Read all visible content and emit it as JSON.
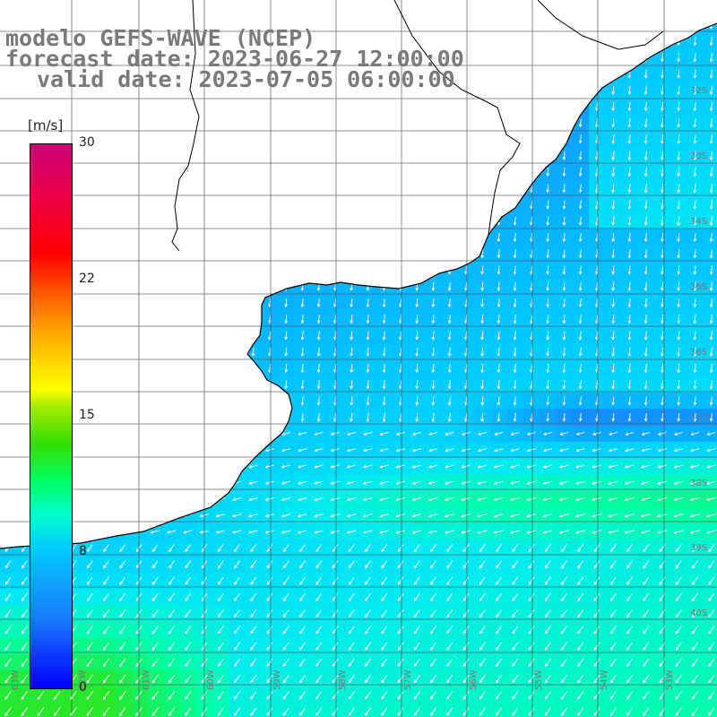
{
  "title": {
    "line1": "modelo GEFS-WAVE (NCEP)",
    "line2": "forecast date: 2023-06-27 12:00:00",
    "line3": "valid date: 2023-07-05 06:00:00"
  },
  "colorbar": {
    "unit": "[m/s]",
    "ticks": [
      "30",
      "22",
      "15",
      "8",
      "0"
    ],
    "tick_values": [
      30,
      22,
      15,
      8,
      0
    ],
    "colors": [
      "#0000ff",
      "#00ccff",
      "#00ff66",
      "#ffff00",
      "#ff0000",
      "#cc0077"
    ]
  },
  "map": {
    "lat_labels": [
      "32S",
      "33S",
      "34S",
      "35S",
      "36S",
      "37S",
      "38S",
      "39S",
      "40S"
    ],
    "lon_labels": [
      "63W",
      "62W",
      "61W",
      "60W",
      "59W",
      "58W",
      "57W",
      "56W",
      "55W",
      "54W",
      "53W"
    ],
    "land_color": "#ffffff",
    "grid_color": "#555555",
    "coast_color": "#000000"
  }
}
